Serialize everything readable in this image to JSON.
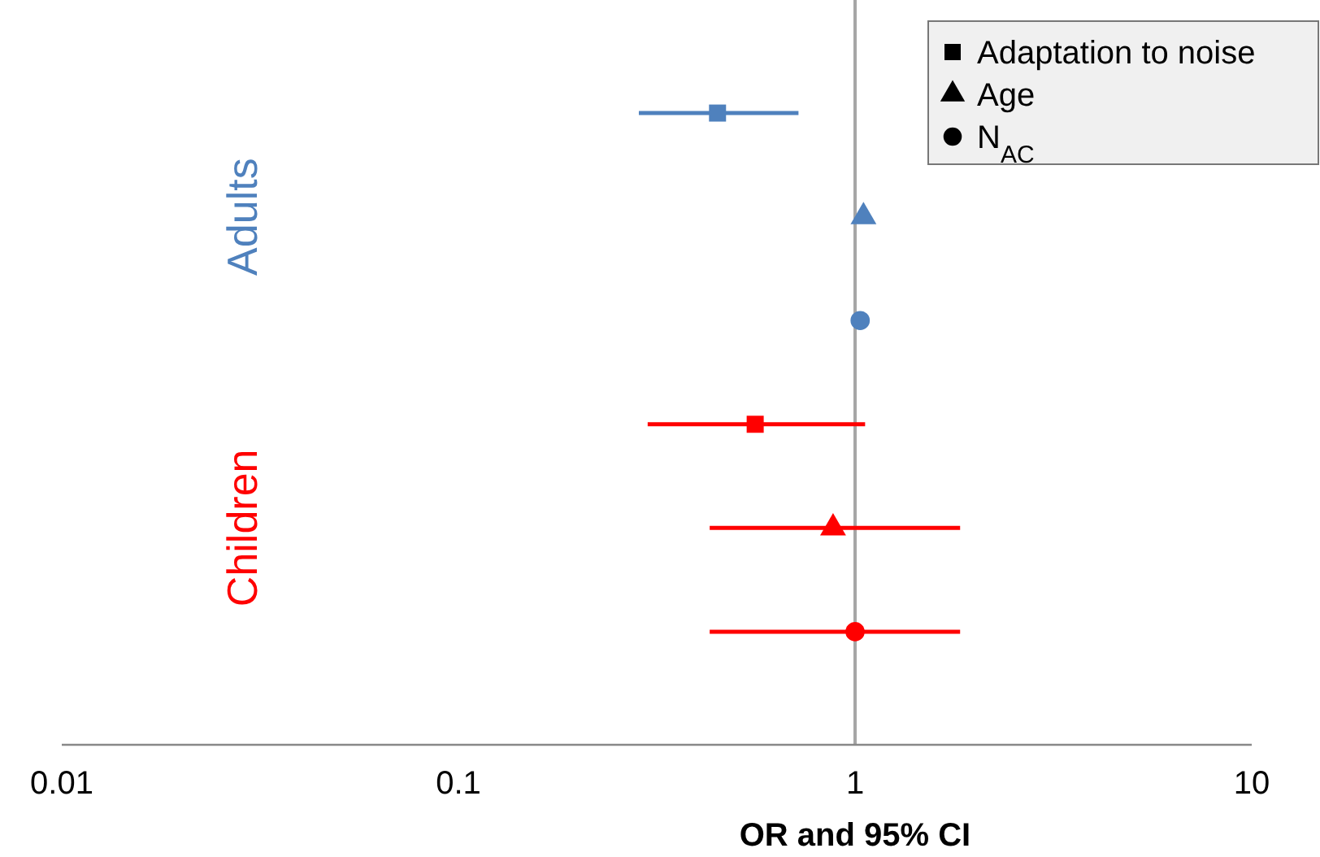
{
  "chart_data": {
    "type": "scatter",
    "orientation": "horizontal",
    "log": "x",
    "xlabel": "OR and 95% CI",
    "xlim": [
      0.01,
      10
    ],
    "xticks": [
      0.01,
      0.1,
      1,
      10
    ],
    "categories": [
      null,
      null,
      null,
      null,
      null,
      null
    ],
    "legend": "top right",
    "grid": false,
    "ref_lines": [
      {
        "axis": "x",
        "value": 1,
        "color": "#a6a6a6"
      }
    ],
    "annotations": [
      "Adults",
      "Children"
    ],
    "series": [
      {
        "name": "Adaptation to noise",
        "marker": "square",
        "colors": [
          "#4f81bd",
          null,
          null,
          "#ff0000",
          null,
          null
        ],
        "values": [
          0.45,
          null,
          null,
          0.56,
          null,
          null
        ],
        "errors": [
          [
            0.285,
            0.72
          ],
          null,
          null,
          [
            0.3,
            1.06
          ],
          null,
          null
        ]
      },
      {
        "name": "Age",
        "marker": "triangle",
        "colors": [
          null,
          "#4f81bd",
          null,
          null,
          "#ff0000",
          null
        ],
        "values": [
          null,
          1.05,
          null,
          null,
          0.88,
          null
        ],
        "errors": [
          null,
          null,
          null,
          null,
          [
            0.43,
            1.84
          ],
          null
        ]
      },
      {
        "name": "N$_{AC}$",
        "marker": "circle",
        "colors": [
          null,
          null,
          "#4f81bd",
          null,
          null,
          "#ff0000"
        ],
        "values": [
          null,
          null,
          1.03,
          null,
          null,
          1.0
        ],
        "errors": [
          null,
          null,
          null,
          null,
          null,
          [
            0.43,
            1.84
          ]
        ]
      }
    ]
  }
}
